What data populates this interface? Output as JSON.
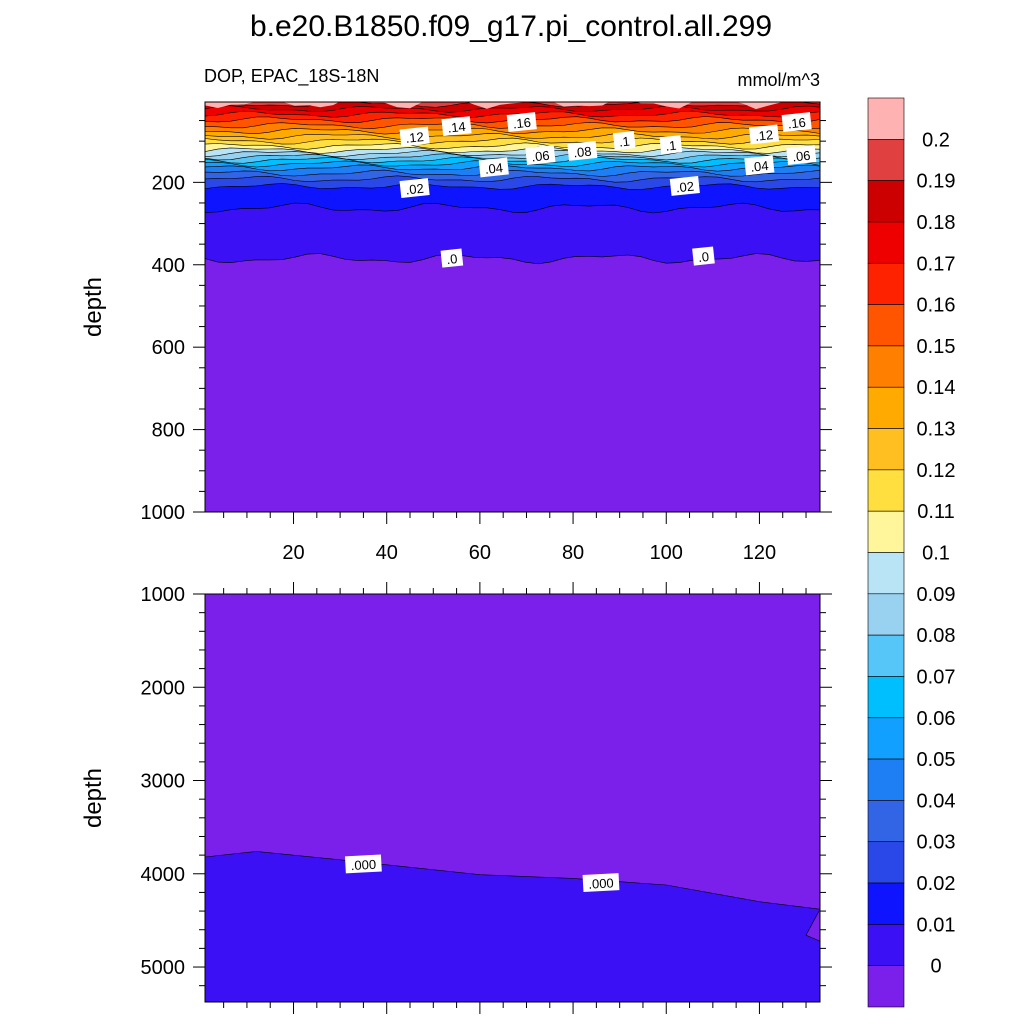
{
  "title": "b.e20.B1850.f09_g17.pi_control.all.299",
  "left_subtitle": "DOP, EPAC_18S-18N",
  "right_subtitle": "mmol/m^3",
  "colors": {
    "background": "#ffffff",
    "frame": "#000000"
  },
  "chart_data": [
    {
      "type": "contour",
      "panel": "upper",
      "ylabel": "depth",
      "xlabel": "",
      "xlim": [
        1,
        133
      ],
      "ylim": [
        1000,
        5
      ],
      "x_ticks": [
        20,
        40,
        60,
        80,
        100,
        120
      ],
      "y_ticks": [
        200,
        400,
        600,
        800,
        1000
      ],
      "isolines": [
        {
          "level": 0.0,
          "depth": 385
        },
        {
          "level": 0.01,
          "depth": 262
        },
        {
          "level": 0.02,
          "depth": 210
        },
        {
          "level": 0.03,
          "depth": 192
        },
        {
          "level": 0.04,
          "depth": 178
        },
        {
          "level": 0.05,
          "depth": 165
        },
        {
          "level": 0.06,
          "depth": 155
        },
        {
          "level": 0.07,
          "depth": 146
        },
        {
          "level": 0.08,
          "depth": 138
        },
        {
          "level": 0.09,
          "depth": 130
        },
        {
          "level": 0.1,
          "depth": 122
        },
        {
          "level": 0.11,
          "depth": 112
        },
        {
          "level": 0.12,
          "depth": 100
        },
        {
          "level": 0.13,
          "depth": 88
        },
        {
          "level": 0.14,
          "depth": 75
        },
        {
          "level": 0.15,
          "depth": 62
        },
        {
          "level": 0.16,
          "depth": 48
        },
        {
          "level": 0.17,
          "depth": 35
        },
        {
          "level": 0.18,
          "depth": 22
        },
        {
          "level": 0.19,
          "depth": 10
        }
      ],
      "contour_labels": [
        {
          "text": ".12",
          "x": 46,
          "depth": 90
        },
        {
          "text": ".14",
          "x": 55,
          "depth": 65
        },
        {
          "text": ".16",
          "x": 69,
          "depth": 55
        },
        {
          "text": ".1",
          "x": 91,
          "depth": 100
        },
        {
          "text": ".1",
          "x": 101,
          "depth": 110
        },
        {
          "text": ".12",
          "x": 121,
          "depth": 85
        },
        {
          "text": ".16",
          "x": 128,
          "depth": 55
        },
        {
          "text": ".06",
          "x": 73,
          "depth": 135
        },
        {
          "text": ".08",
          "x": 82,
          "depth": 125
        },
        {
          "text": ".06",
          "x": 129,
          "depth": 135
        },
        {
          "text": ".04",
          "x": 63,
          "depth": 165
        },
        {
          "text": ".04",
          "x": 120,
          "depth": 160
        },
        {
          "text": ".02",
          "x": 46,
          "depth": 215
        },
        {
          "text": ".02",
          "x": 104,
          "depth": 210
        },
        {
          "text": ".0",
          "x": 54,
          "depth": 385
        },
        {
          "text": ".0",
          "x": 108,
          "depth": 380
        }
      ]
    },
    {
      "type": "contour",
      "panel": "lower",
      "ylabel": "depth",
      "xlabel": "",
      "xlim": [
        1,
        133
      ],
      "ylim": [
        5375,
        1000
      ],
      "y_ticks": [
        1000,
        2000,
        3000,
        4000,
        5000
      ],
      "boundary_0_line": [
        [
          1,
          3820
        ],
        [
          12,
          3760
        ],
        [
          30,
          3850
        ],
        [
          60,
          4010
        ],
        [
          80,
          4050
        ],
        [
          100,
          4120
        ],
        [
          120,
          4300
        ],
        [
          133,
          4380
        ]
      ],
      "contour_labels": [
        {
          "text": ".000",
          "x": 35,
          "depth": 3900
        },
        {
          "text": ".000",
          "x": 86,
          "depth": 4100
        }
      ]
    }
  ],
  "colorbar": {
    "labels": [
      "0.2",
      "0.19",
      "0.18",
      "0.17",
      "0.16",
      "0.15",
      "0.14",
      "0.13",
      "0.12",
      "0.11",
      "0.1",
      "0.09",
      "0.08",
      "0.07",
      "0.06",
      "0.05",
      "0.04",
      "0.03",
      "0.02",
      "0.01",
      "0"
    ],
    "colors": [
      "#ffb2b2",
      "#e04040",
      "#cc0000",
      "#ee0000",
      "#ff2200",
      "#ff5500",
      "#ff8000",
      "#ffaa00",
      "#ffbf20",
      "#ffdf40",
      "#fff59a",
      "#b8e4f6",
      "#99d1f0",
      "#55c6f7",
      "#00bfff",
      "#11a0ff",
      "#1e7ff5",
      "#3264e6",
      "#2a48e8",
      "#0f14ff",
      "#3b10f5",
      "#7b1fea"
    ]
  }
}
